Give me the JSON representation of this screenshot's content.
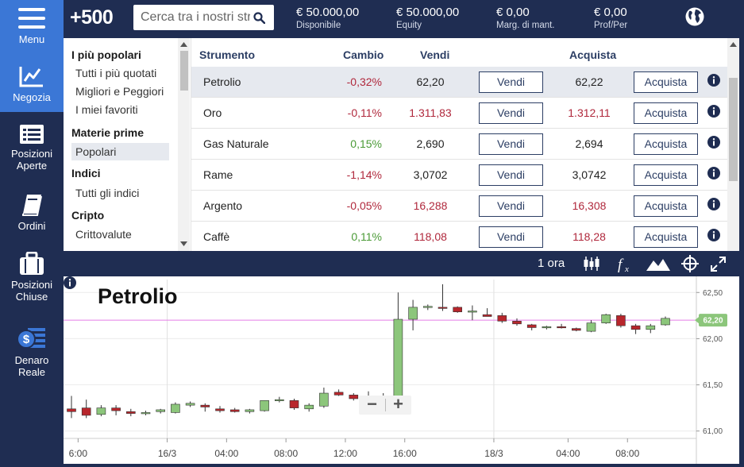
{
  "nav": {
    "items": [
      {
        "id": "menu",
        "label": "Menu"
      },
      {
        "id": "trade",
        "label": "Negozia"
      },
      {
        "id": "open_positions",
        "label": "Posizioni\nAperte"
      },
      {
        "id": "orders",
        "label": "Ordini"
      },
      {
        "id": "closed_positions",
        "label": "Posizioni\nChiuse"
      },
      {
        "id": "real_money",
        "label": "Denaro\nReale"
      }
    ],
    "active": "trade"
  },
  "header": {
    "logo": "+500",
    "search_placeholder": "Cerca tra i nostri strumenti",
    "stats": [
      {
        "value": "€ 50.000,00",
        "label": "Disponibile"
      },
      {
        "value": "€ 50.000,00",
        "label": "Equity"
      },
      {
        "value": "€ 0,00",
        "label": "Marg. di mant."
      },
      {
        "value": "€ 0,00",
        "label": "Prof/Per"
      }
    ]
  },
  "categories": [
    {
      "type": "head",
      "label": "I più popolari"
    },
    {
      "type": "item",
      "label": "Tutti i più quotati"
    },
    {
      "type": "item",
      "label": "Migliori e Peggiori"
    },
    {
      "type": "item",
      "label": "I miei favoriti"
    },
    {
      "type": "head",
      "label": "Materie prime"
    },
    {
      "type": "item",
      "label": "Popolari",
      "selected": true
    },
    {
      "type": "head",
      "label": "Indici"
    },
    {
      "type": "item",
      "label": "Tutti gli indici"
    },
    {
      "type": "head",
      "label": "Cripto"
    },
    {
      "type": "item",
      "label": "Crittovalute"
    }
  ],
  "table": {
    "headers": {
      "instrument": "Strumento",
      "change": "Cambio",
      "sell": "Vendi",
      "buy": "Acquista"
    },
    "sell_button": "Vendi",
    "buy_button": "Acquista",
    "rows": [
      {
        "name": "Petrolio",
        "change": "-0,32%",
        "sell": "62,20",
        "buy": "62,22",
        "dir": "neg",
        "price_color": "dark",
        "selected": true
      },
      {
        "name": "Oro",
        "change": "-0,11%",
        "sell": "1.311,83",
        "buy": "1.312,11",
        "dir": "neg",
        "price_color": "neg"
      },
      {
        "name": "Gas Naturale",
        "change": "0,15%",
        "sell": "2,690",
        "buy": "2,694",
        "dir": "pos",
        "price_color": "dark"
      },
      {
        "name": "Rame",
        "change": "-1,14%",
        "sell": "3,0702",
        "buy": "3,0742",
        "dir": "neg",
        "price_color": "dark"
      },
      {
        "name": "Argento",
        "change": "-0,05%",
        "sell": "16,288",
        "buy": "16,308",
        "dir": "neg",
        "price_color": "neg"
      },
      {
        "name": "Caffè",
        "change": "0,11%",
        "sell": "118,08",
        "buy": "118,28",
        "dir": "pos",
        "price_color": "neg"
      }
    ]
  },
  "chart_toolbar": {
    "timeframe": "1 ora",
    "icons": [
      "candles-icon",
      "function-icon",
      "area-chart-icon",
      "crosshair-icon",
      "fullscreen-icon"
    ]
  },
  "chart_data": {
    "type": "candlestick",
    "title": "Petrolio",
    "y_ticks": [
      "62,50",
      "62,00",
      "61,50",
      "61,00"
    ],
    "y_tick_values": [
      62.5,
      62.0,
      61.5,
      61.0
    ],
    "ylim": [
      60.92,
      62.64
    ],
    "current_price_label": "62,20",
    "current_price": 62.2,
    "x_ticks": [
      "6:00",
      "16/3",
      "04:00",
      "08:00",
      "12:00",
      "16:00",
      "18/3",
      "04:00",
      "08:00"
    ],
    "x_tick_positions": [
      0.5,
      6.5,
      10.5,
      14.5,
      18.5,
      22.5,
      28.5,
      33.5,
      37.5
    ],
    "candles": [
      {
        "o": 61.24,
        "h": 61.38,
        "l": 61.14,
        "c": 61.21
      },
      {
        "o": 61.25,
        "h": 61.34,
        "l": 61.14,
        "c": 61.17
      },
      {
        "o": 61.18,
        "h": 61.28,
        "l": 61.16,
        "c": 61.25
      },
      {
        "o": 61.25,
        "h": 61.28,
        "l": 61.17,
        "c": 61.22
      },
      {
        "o": 61.21,
        "h": 61.24,
        "l": 61.16,
        "c": 61.19
      },
      {
        "o": 61.19,
        "h": 61.22,
        "l": 61.17,
        "c": 61.2
      },
      {
        "o": 61.21,
        "h": 61.24,
        "l": 61.19,
        "c": 61.23
      },
      {
        "o": 61.2,
        "h": 61.31,
        "l": 61.19,
        "c": 61.29
      },
      {
        "o": 61.28,
        "h": 61.32,
        "l": 61.26,
        "c": 61.3
      },
      {
        "o": 61.28,
        "h": 61.3,
        "l": 61.21,
        "c": 61.26
      },
      {
        "o": 61.24,
        "h": 61.27,
        "l": 61.2,
        "c": 61.22
      },
      {
        "o": 61.23,
        "h": 61.25,
        "l": 61.2,
        "c": 61.21
      },
      {
        "o": 61.21,
        "h": 61.24,
        "l": 61.19,
        "c": 61.23
      },
      {
        "o": 61.22,
        "h": 61.33,
        "l": 61.21,
        "c": 61.33
      },
      {
        "o": 61.33,
        "h": 61.37,
        "l": 61.31,
        "c": 61.34
      },
      {
        "o": 61.33,
        "h": 61.35,
        "l": 61.23,
        "c": 61.25
      },
      {
        "o": 61.24,
        "h": 61.3,
        "l": 61.21,
        "c": 61.28
      },
      {
        "o": 61.27,
        "h": 61.47,
        "l": 61.25,
        "c": 61.41
      },
      {
        "o": 61.42,
        "h": 61.45,
        "l": 61.38,
        "c": 61.39
      },
      {
        "o": 61.39,
        "h": 61.41,
        "l": 61.33,
        "c": 61.35
      },
      {
        "o": 61.31,
        "h": 61.43,
        "l": 61.24,
        "c": 61.37
      },
      {
        "o": 61.37,
        "h": 61.41,
        "l": 61.24,
        "c": 61.31
      },
      {
        "o": 61.28,
        "h": 62.5,
        "l": 61.25,
        "c": 62.21
      },
      {
        "o": 62.21,
        "h": 62.42,
        "l": 62.09,
        "c": 62.34
      },
      {
        "o": 62.34,
        "h": 62.37,
        "l": 62.31,
        "c": 62.35
      },
      {
        "o": 62.34,
        "h": 62.59,
        "l": 62.3,
        "c": 62.33
      },
      {
        "o": 62.34,
        "h": 62.35,
        "l": 62.28,
        "c": 62.29
      },
      {
        "o": 62.29,
        "h": 62.36,
        "l": 62.2,
        "c": 62.3
      },
      {
        "o": 62.26,
        "h": 62.33,
        "l": 62.24,
        "c": 62.24
      },
      {
        "o": 62.25,
        "h": 62.28,
        "l": 62.17,
        "c": 62.19
      },
      {
        "o": 62.19,
        "h": 62.22,
        "l": 62.14,
        "c": 62.16
      },
      {
        "o": 62.15,
        "h": 62.16,
        "l": 62.09,
        "c": 62.12
      },
      {
        "o": 62.12,
        "h": 62.14,
        "l": 62.1,
        "c": 62.13
      },
      {
        "o": 62.13,
        "h": 62.16,
        "l": 62.11,
        "c": 62.12
      },
      {
        "o": 62.11,
        "h": 62.12,
        "l": 62.08,
        "c": 62.09
      },
      {
        "o": 62.08,
        "h": 62.2,
        "l": 62.07,
        "c": 62.17
      },
      {
        "o": 62.17,
        "h": 62.27,
        "l": 62.16,
        "c": 62.26
      },
      {
        "o": 62.25,
        "h": 62.27,
        "l": 62.12,
        "c": 62.14
      },
      {
        "o": 62.14,
        "h": 62.16,
        "l": 62.05,
        "c": 62.1
      },
      {
        "o": 62.1,
        "h": 62.16,
        "l": 62.06,
        "c": 62.14
      },
      {
        "o": 62.15,
        "h": 62.24,
        "l": 62.14,
        "c": 62.22
      }
    ],
    "grid": true
  },
  "zoom": {
    "minus": "−",
    "plus": "+"
  },
  "colors": {
    "nav_bg": "#1f2d52",
    "nav_active": "#3b77d6",
    "up_candle": "#8cc67b",
    "down_candle": "#b8262c",
    "price_line": "#e57de6",
    "price_tag": "#8cc67b"
  }
}
